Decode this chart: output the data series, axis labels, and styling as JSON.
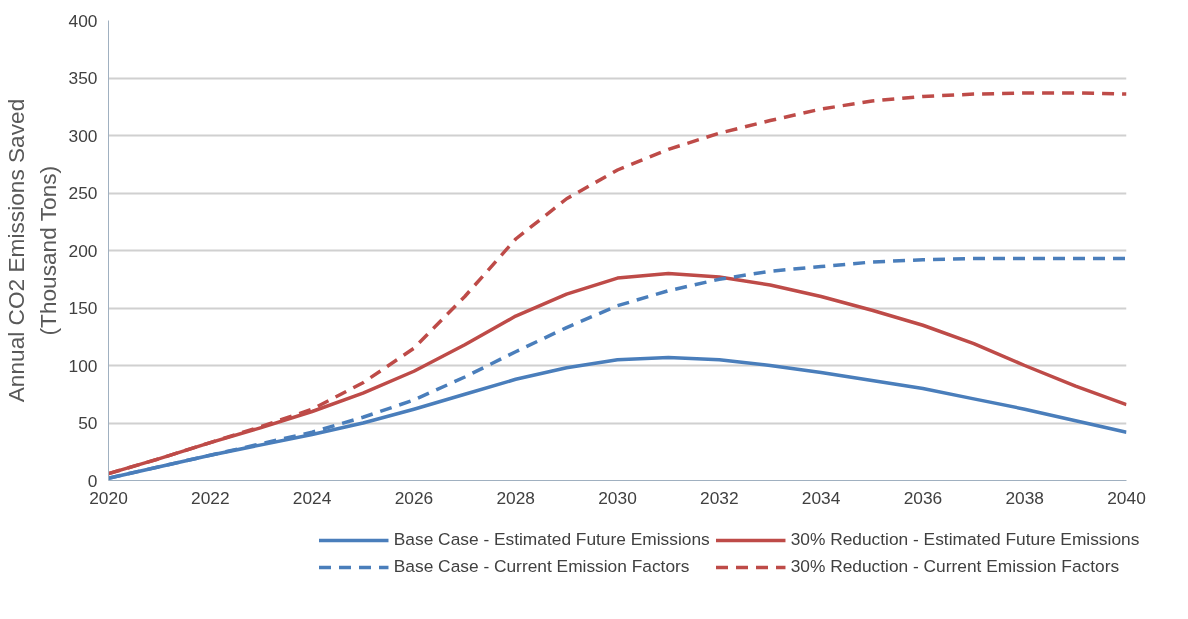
{
  "chart_data": {
    "type": "line",
    "ylabel": "Annual CO2 Emissions Saved\n(Thousand Tons)",
    "x": [
      2020,
      2021,
      2022,
      2023,
      2024,
      2025,
      2026,
      2027,
      2028,
      2029,
      2030,
      2031,
      2032,
      2033,
      2034,
      2035,
      2036,
      2037,
      2038,
      2039,
      2040
    ],
    "xlim": [
      2020,
      2040
    ],
    "xticks": [
      2020,
      2022,
      2024,
      2026,
      2028,
      2030,
      2032,
      2034,
      2036,
      2038,
      2040
    ],
    "ylim": [
      0,
      400
    ],
    "yticks": [
      0,
      50,
      100,
      150,
      200,
      250,
      300,
      350,
      400
    ],
    "grid": "y",
    "legend": "bottom",
    "series": [
      {
        "name": "Base Case - Estimated Future Emissions",
        "color": "#4a7ebb",
        "line_style": "solid",
        "values": [
          2,
          12,
          22,
          31,
          40,
          50,
          62,
          75,
          88,
          98,
          105,
          107,
          105,
          100,
          94,
          87,
          80,
          71,
          62,
          52,
          42
        ]
      },
      {
        "name": "30% Reduction - Estimated Future Emissions",
        "color": "#be4b48",
        "line_style": "solid",
        "values": [
          6,
          19,
          33,
          46,
          60,
          76,
          95,
          118,
          143,
          162,
          176,
          180,
          177,
          170,
          160,
          148,
          135,
          119,
          100,
          82,
          66
        ]
      },
      {
        "name": "Base Case - Current Emission Factors",
        "color": "#4a7ebb",
        "line_style": "dashed",
        "values": [
          2,
          12,
          22,
          32,
          42,
          55,
          70,
          90,
          112,
          133,
          152,
          165,
          175,
          182,
          186,
          190,
          192,
          193,
          193,
          193,
          193
        ]
      },
      {
        "name": "30% Reduction - Current Emission Factors",
        "color": "#be4b48",
        "line_style": "dashed",
        "values": [
          6,
          19,
          33,
          47,
          62,
          85,
          115,
          160,
          210,
          245,
          270,
          288,
          302,
          313,
          323,
          330,
          334,
          336,
          337,
          337,
          336
        ]
      }
    ]
  }
}
